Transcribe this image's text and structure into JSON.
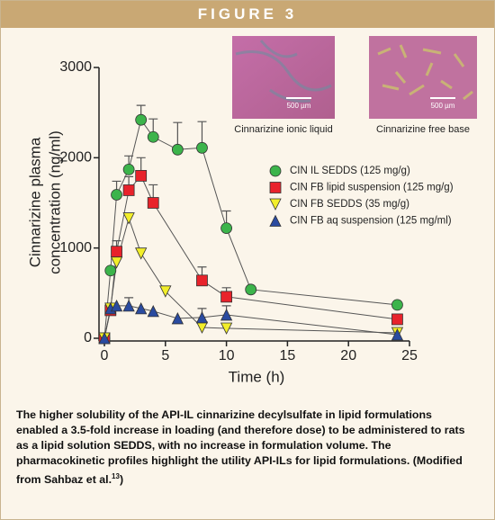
{
  "header": {
    "title": "FIGURE 3"
  },
  "images": [
    {
      "scale": "500 µm",
      "caption": "Cinnarizine ionic liquid"
    },
    {
      "scale": "500 µm",
      "caption": "Cinnarizine free base"
    }
  ],
  "chart_data": {
    "type": "line",
    "xlabel": "Time (h)",
    "ylabel": [
      "Cinnarizine plasma",
      "concentration (ng/ml)"
    ],
    "xlim": [
      0,
      25
    ],
    "xticks": [
      0,
      5,
      10,
      15,
      20,
      25
    ],
    "ylim": [
      0,
      3000
    ],
    "yticks": [
      0,
      1000,
      2000,
      3000
    ],
    "series": [
      {
        "name": "CIN IL SEDDS (125 mg/g)",
        "color": "#3cb44b",
        "marker": "circle",
        "x": [
          0,
          0.5,
          1,
          2,
          3,
          4,
          6,
          8,
          10,
          12,
          24
        ],
        "values": [
          0,
          750,
          1590,
          1870,
          2420,
          2230,
          2090,
          2110,
          1220,
          540,
          370
        ],
        "errors": [
          0,
          0,
          150,
          150,
          160,
          200,
          300,
          290,
          190,
          0,
          0
        ]
      },
      {
        "name": "CIN FB lipid suspension (125 mg/g)",
        "color": "#e8232b",
        "marker": "square",
        "x": [
          0,
          0.5,
          1,
          2,
          3,
          4,
          8,
          10,
          24
        ],
        "values": [
          0,
          310,
          960,
          1640,
          1800,
          1500,
          640,
          460,
          210
        ],
        "errors": [
          0,
          0,
          120,
          150,
          200,
          200,
          150,
          100,
          0
        ]
      },
      {
        "name": "CIN FB SEDDS (35 mg/g)",
        "color": "#f2ee2a",
        "marker": "triangle-down",
        "x": [
          0,
          0.5,
          1,
          2,
          3,
          5,
          8,
          10,
          24
        ],
        "values": [
          0,
          330,
          840,
          1330,
          940,
          520,
          120,
          110,
          60
        ],
        "errors": [
          0,
          0,
          0,
          0,
          0,
          0,
          0,
          0,
          0
        ]
      },
      {
        "name": "CIN FB aq suspension (125 mg/ml)",
        "color": "#2a4ba0",
        "marker": "triangle",
        "x": [
          0,
          0.5,
          1,
          2,
          3,
          4,
          6,
          8,
          10,
          24
        ],
        "values": [
          0,
          330,
          360,
          360,
          330,
          300,
          220,
          230,
          260,
          40
        ],
        "errors": [
          0,
          0,
          0,
          90,
          0,
          0,
          0,
          100,
          100,
          0
        ]
      }
    ]
  },
  "caption": {
    "text": "The higher solubility of the API-IL cinnarizine decylsulfate in lipid formulations enabled a 3.5-fold increase in loading (and therefore dose) to be administered to rats as a lipid solution SEDDS, with no increase in formulation volume. The pharmacokinetic profiles highlight the utility API-ILs for lipid formulations. (Modified from Sahbaz et al.",
    "ref": "13",
    "end": ")"
  }
}
